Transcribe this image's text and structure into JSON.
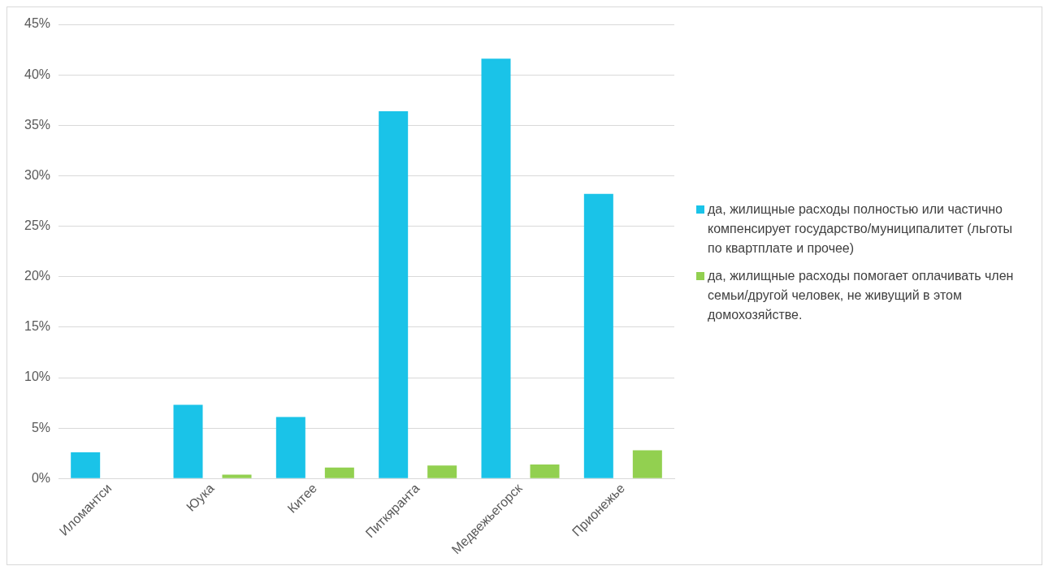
{
  "chart_data": {
    "type": "bar",
    "categories": [
      "Иломантси",
      "Юука",
      "Китее",
      "Питкяранта",
      "Медвежьегорск",
      "Прионежье"
    ],
    "series": [
      {
        "name": "да, жилищные расходы полностью или частично компенсирует государство/муниципалитет (льготы по квартплате и прочее)",
        "color": "#1ac3e8",
        "values": [
          2.6,
          7.3,
          6.1,
          36.4,
          41.6,
          28.2
        ]
      },
      {
        "name": "да, жилищные расходы помогает оплачивать член семьи/другой человек, не живущий в этом домохозяйстве.",
        "color": "#92d050",
        "values": [
          null,
          0.4,
          1.1,
          1.3,
          1.4,
          2.8
        ]
      }
    ],
    "ylim": [
      0,
      45
    ],
    "yticks": [
      {
        "value": 0,
        "label": "0%"
      },
      {
        "value": 5,
        "label": "5%"
      },
      {
        "value": 10,
        "label": "10%"
      },
      {
        "value": 15,
        "label": "15%"
      },
      {
        "value": 20,
        "label": "20%"
      },
      {
        "value": 25,
        "label": "25%"
      },
      {
        "value": 30,
        "label": "30%"
      },
      {
        "value": 35,
        "label": "35%"
      },
      {
        "value": 40,
        "label": "40%"
      },
      {
        "value": 45,
        "label": "45%"
      }
    ],
    "grid": "y",
    "legend": "right"
  }
}
